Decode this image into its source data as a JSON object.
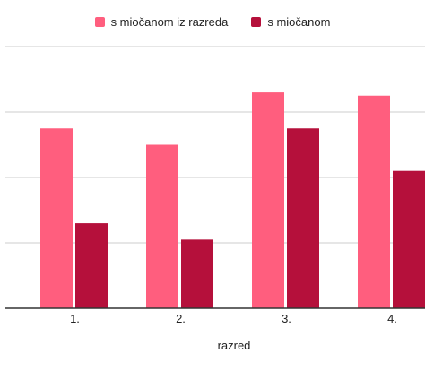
{
  "chart_data": {
    "type": "bar",
    "categories": [
      "1.",
      "2.",
      "3.",
      "4."
    ],
    "series": [
      {
        "name": "s miočanom iz razreda",
        "color": "#ff5e7e",
        "values": [
          2.75,
          2.5,
          3.3,
          3.25
        ]
      },
      {
        "name": "s miočanom",
        "color": "#b5103b",
        "values": [
          1.3,
          1.05,
          2.75,
          2.1
        ]
      }
    ],
    "xlabel": "razred",
    "ylabel": "",
    "ylim": [
      0,
      4
    ],
    "grid": true,
    "legend_position": "top"
  }
}
